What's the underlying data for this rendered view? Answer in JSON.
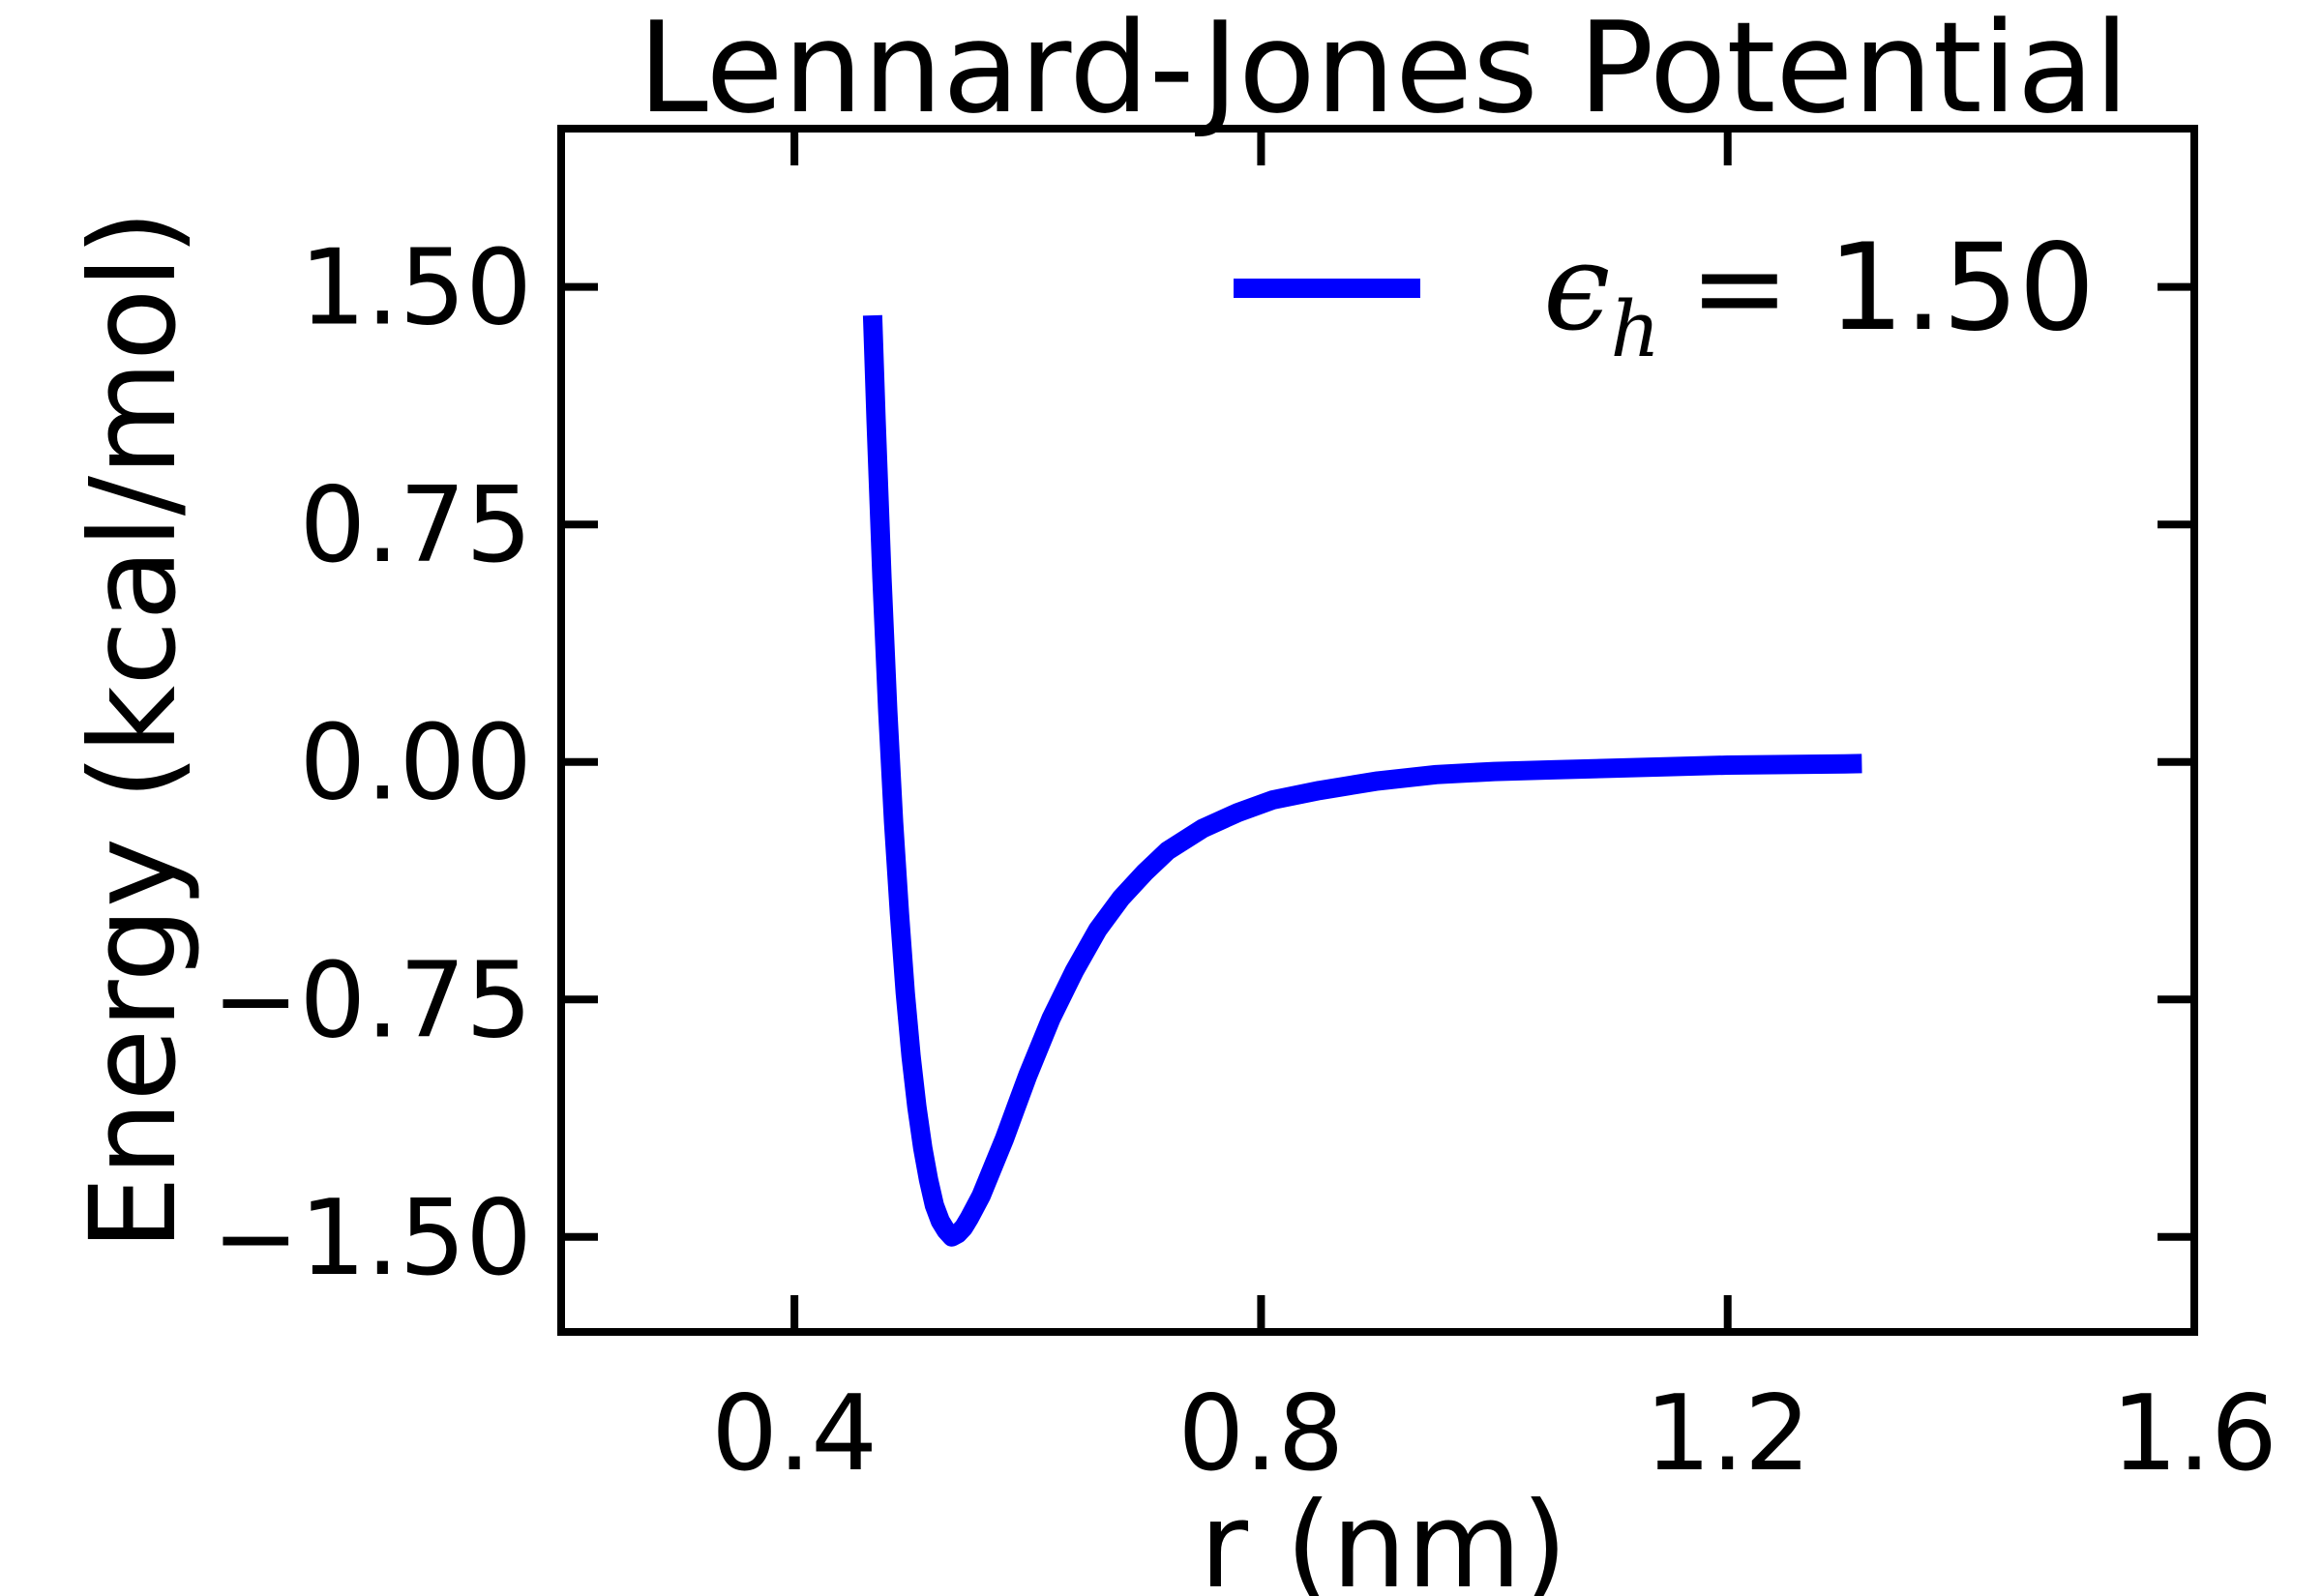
{
  "chart_data": {
    "type": "line",
    "title": "Lennard-Jones Potential",
    "xlabel": "r (nm)",
    "ylabel": "Energy (kcal/mol)",
    "xlim": [
      0.2,
      1.6
    ],
    "ylim": [
      -1.8,
      2.0
    ],
    "xticks": [
      0.4,
      0.8,
      1.2,
      1.6
    ],
    "xtick_labels": [
      "0.4",
      "0.8",
      "1.2",
      "1.6"
    ],
    "yticks": [
      -1.5,
      -0.75,
      0.0,
      0.75,
      1.5
    ],
    "ytick_labels": [
      "−1.50",
      "−0.75",
      "0.00",
      "0.75",
      "1.50"
    ],
    "grid": false,
    "legend": {
      "placement": "top-right",
      "symbol": "ϵ",
      "subscript": "h",
      "value_text": "= 1.50"
    },
    "series": [
      {
        "name": "ϵh = 1.50",
        "color": "#0000ff",
        "x": [
          0.467,
          0.47,
          0.475,
          0.48,
          0.485,
          0.49,
          0.495,
          0.5,
          0.505,
          0.51,
          0.515,
          0.52,
          0.525,
          0.53,
          0.535,
          0.54,
          0.545,
          0.55,
          0.56,
          0.57,
          0.58,
          0.59,
          0.6,
          0.62,
          0.64,
          0.66,
          0.68,
          0.7,
          0.72,
          0.75,
          0.78,
          0.81,
          0.85,
          0.9,
          0.95,
          1.0,
          1.05,
          1.1,
          1.15,
          1.2,
          1.25,
          1.3,
          1.315
        ],
        "y": [
          1.41,
          1.08,
          0.58,
          0.16,
          -0.19,
          -0.48,
          -0.73,
          -0.93,
          -1.09,
          -1.22,
          -1.32,
          -1.4,
          -1.45,
          -1.48,
          -1.5,
          -1.49,
          -1.47,
          -1.44,
          -1.37,
          -1.28,
          -1.19,
          -1.09,
          -0.99,
          -0.81,
          -0.66,
          -0.53,
          -0.43,
          -0.35,
          -0.28,
          -0.21,
          -0.16,
          -0.12,
          -0.09,
          -0.06,
          -0.04,
          -0.03,
          -0.025,
          -0.02,
          -0.015,
          -0.01,
          -0.008,
          -0.006,
          -0.005
        ]
      }
    ]
  }
}
